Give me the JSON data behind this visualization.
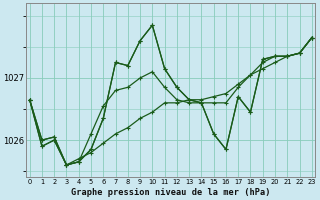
{
  "xlabel": "Graphe pression niveau de la mer (hPa)",
  "bg_color": "#cce8f0",
  "grid_color": "#88ccbb",
  "line_color": "#1a5c1a",
  "x_ticks": [
    0,
    1,
    2,
    3,
    4,
    5,
    6,
    7,
    8,
    9,
    10,
    11,
    12,
    13,
    14,
    15,
    16,
    17,
    18,
    19,
    20,
    21,
    22,
    23
  ],
  "y_ticks": [
    1026,
    1027
  ],
  "ylim": [
    1025.4,
    1028.2
  ],
  "xlim": [
    -0.3,
    23.3
  ],
  "series": [
    [
      1026.65,
      1025.9,
      1026.0,
      1025.6,
      1025.65,
      1025.85,
      1026.35,
      1027.25,
      1027.2,
      1027.6,
      1027.85,
      1027.15,
      1026.85,
      1026.65,
      1026.6,
      1026.1,
      1025.85,
      1026.7,
      1026.45,
      1027.3,
      1027.35,
      1027.35,
      1027.4,
      1027.65
    ],
    [
      1026.65,
      1025.9,
      1026.0,
      1025.6,
      1025.65,
      1025.85,
      1026.35,
      1027.25,
      1027.2,
      1027.6,
      1027.85,
      1027.15,
      1026.85,
      1026.65,
      1026.6,
      1026.1,
      1025.85,
      1026.7,
      1026.45,
      1027.3,
      1027.35,
      1027.35,
      1027.4,
      1027.65
    ],
    [
      1026.65,
      1026.0,
      1026.05,
      1025.6,
      1025.65,
      1026.1,
      1026.55,
      1026.8,
      1026.85,
      1027.0,
      1027.1,
      1026.85,
      1026.65,
      1026.6,
      1026.6,
      1026.6,
      1026.6,
      1026.85,
      1027.05,
      1027.25,
      1027.35,
      1027.35,
      1027.4,
      1027.65
    ],
    [
      1026.65,
      1026.0,
      1026.05,
      1025.6,
      1025.7,
      1025.8,
      1025.95,
      1026.1,
      1026.2,
      1026.35,
      1026.45,
      1026.6,
      1026.6,
      1026.65,
      1026.65,
      1026.7,
      1026.75,
      1026.9,
      1027.05,
      1027.15,
      1027.25,
      1027.35,
      1027.4,
      1027.65
    ]
  ]
}
